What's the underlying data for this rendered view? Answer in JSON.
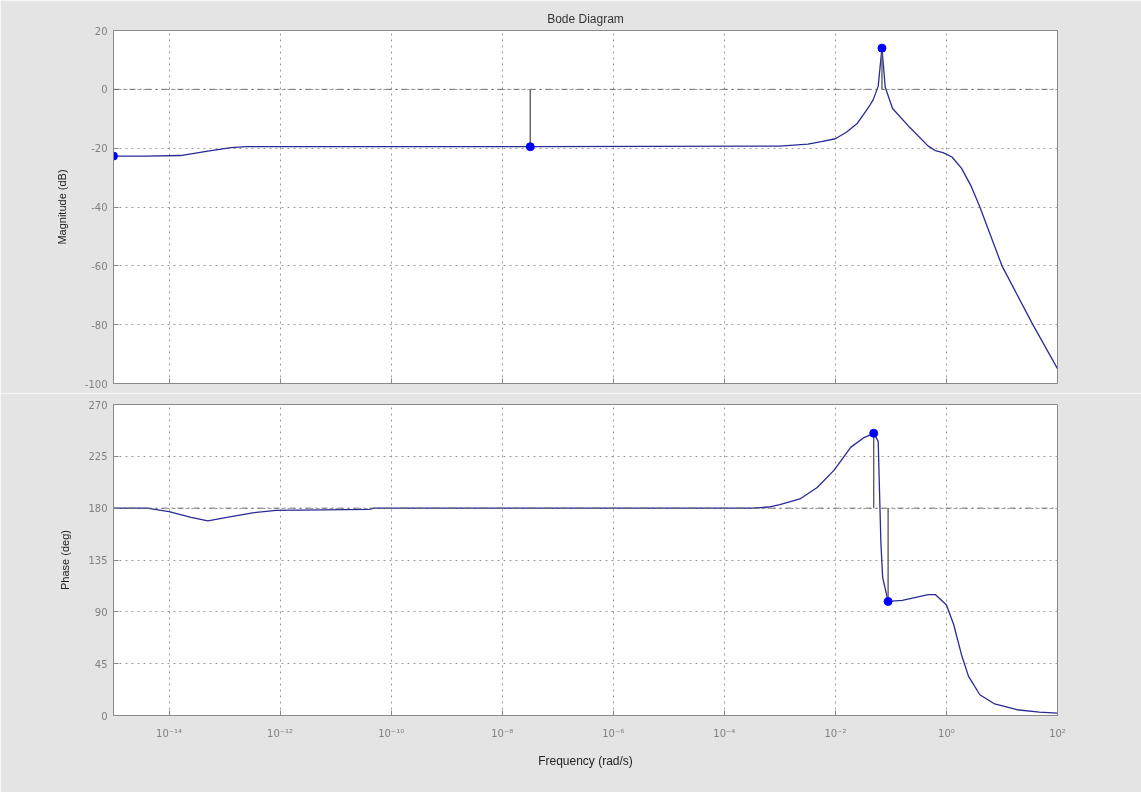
{
  "chart_data": [
    {
      "type": "line",
      "title": "Bode Diagram",
      "ylabel": "Magnitude (dB)",
      "log": "x",
      "xlim": [
        1e-15,
        100
      ],
      "xticks": [
        {
          "value": 1e-14,
          "label": null
        },
        {
          "value": 1e-12,
          "label": null
        },
        {
          "value": 1e-10,
          "label": null
        },
        {
          "value": 1e-08,
          "label": null
        },
        {
          "value": 1e-06,
          "label": null
        },
        {
          "value": 0.0001,
          "label": null
        },
        {
          "value": 0.01,
          "label": null
        },
        {
          "value": 1,
          "label": null
        },
        {
          "value": 100,
          "label": null
        }
      ],
      "ylim": [
        -100,
        20
      ],
      "yticks": [
        -100,
        -80,
        -60,
        -40,
        -20,
        0,
        20
      ],
      "grid": true,
      "tick_labels": "y",
      "ref_lines": [
        {
          "axis": "y",
          "value": 0,
          "color": "#6e6e6e",
          "line_style": "dashdot"
        }
      ],
      "series": [
        {
          "color": "#2a2a96",
          "x": [
            1e-15,
            4e-15,
            1.6e-14,
            5e-14,
            1.3e-13,
            2.5e-13,
            3.2e-08,
            0.001,
            0.0032,
            0.0056,
            0.01,
            0.016,
            0.025,
            0.04,
            0.048,
            0.059,
            0.069,
            0.079,
            0.107,
            0.22,
            0.47,
            0.63,
            0.87,
            1.26,
            1.86,
            2.8,
            4.0,
            10,
            36,
            100
          ],
          "values": [
            -22.7,
            -22.7,
            -22.5,
            -21,
            -19.8,
            -19.5,
            -19.5,
            -19.3,
            -18.6,
            -17.8,
            -16.8,
            -14.5,
            -11.5,
            -6,
            -3.5,
            1,
            14,
            0.7,
            -6.5,
            -13,
            -19.3,
            -20.8,
            -21.5,
            -23,
            -26.8,
            -33,
            -40,
            -60,
            -80,
            -95
          ]
        },
        {
          "color": "#555555",
          "x": [
            3.2e-08,
            3.2e-08
          ],
          "values": [
            0,
            -19.5
          ]
        },
        {
          "color": "#555555",
          "x": [
            0.069,
            0.069
          ],
          "values": [
            14,
            0
          ]
        },
        {
          "type": "scatter",
          "color": "#0000ff",
          "marker": "circle",
          "x": [
            1e-15,
            3.2e-08,
            0.069
          ],
          "values": [
            -22.7,
            -19.5,
            14
          ]
        }
      ]
    },
    {
      "type": "line",
      "xlabel": "Frequency (rad/s)",
      "ylabel": "Phase (deg)",
      "log": "x",
      "xlim": [
        1e-15,
        100
      ],
      "xticks": [
        {
          "value": 1e-14,
          "label": "10⁻¹⁴"
        },
        {
          "value": 1e-12,
          "label": "10⁻¹²"
        },
        {
          "value": 1e-10,
          "label": "10⁻¹⁰"
        },
        {
          "value": 1e-08,
          "label": "10⁻⁸"
        },
        {
          "value": 1e-06,
          "label": "10⁻⁶"
        },
        {
          "value": 0.0001,
          "label": "10⁻⁴"
        },
        {
          "value": 0.01,
          "label": "10⁻²"
        },
        {
          "value": 1,
          "label": "10⁰"
        },
        {
          "value": 100,
          "label": "10²"
        }
      ],
      "ylim": [
        0,
        270
      ],
      "yticks": [
        0,
        45,
        90,
        135,
        180,
        225,
        270
      ],
      "grid": true,
      "ref_lines": [
        {
          "axis": "y",
          "value": 180,
          "color": "#6e6e6e",
          "line_style": "dashdot"
        }
      ],
      "series": [
        {
          "color": "#2a2a96",
          "x": [
            1e-15,
            4e-15,
            1e-14,
            2.5e-14,
            5e-14,
            1.1e-13,
            3.2e-13,
            8.5e-13,
            4e-11,
            5e-11,
            0.00032,
            0.00063,
            0.001,
            0.0023,
            0.0047,
            0.0095,
            0.019,
            0.032,
            0.049,
            0.052,
            0.059,
            0.066,
            0.071,
            0.089,
            0.16,
            0.47,
            0.63,
            1.0,
            1.35,
            1.86,
            2.5,
            4.0,
            7.4,
            18.6,
            47,
            100
          ],
          "values": [
            180,
            180,
            177,
            172,
            169,
            172,
            176,
            178,
            179,
            180,
            180,
            181,
            183,
            188,
            198,
            213,
            233,
            241,
            245,
            243,
            238,
            150,
            120,
            99,
            100,
            105,
            105,
            96,
            79,
            53,
            34,
            18,
            10,
            5,
            3,
            2
          ]
        },
        {
          "color": "#555555",
          "x": [
            0.049,
            0.049
          ],
          "values": [
            245,
            180
          ]
        },
        {
          "color": "#555555",
          "x": [
            0.089,
            0.089
          ],
          "values": [
            180,
            99
          ]
        },
        {
          "type": "scatter",
          "color": "#0000ff",
          "marker": "circle",
          "x": [
            0.049,
            0.089
          ],
          "values": [
            245,
            99
          ]
        }
      ]
    }
  ]
}
